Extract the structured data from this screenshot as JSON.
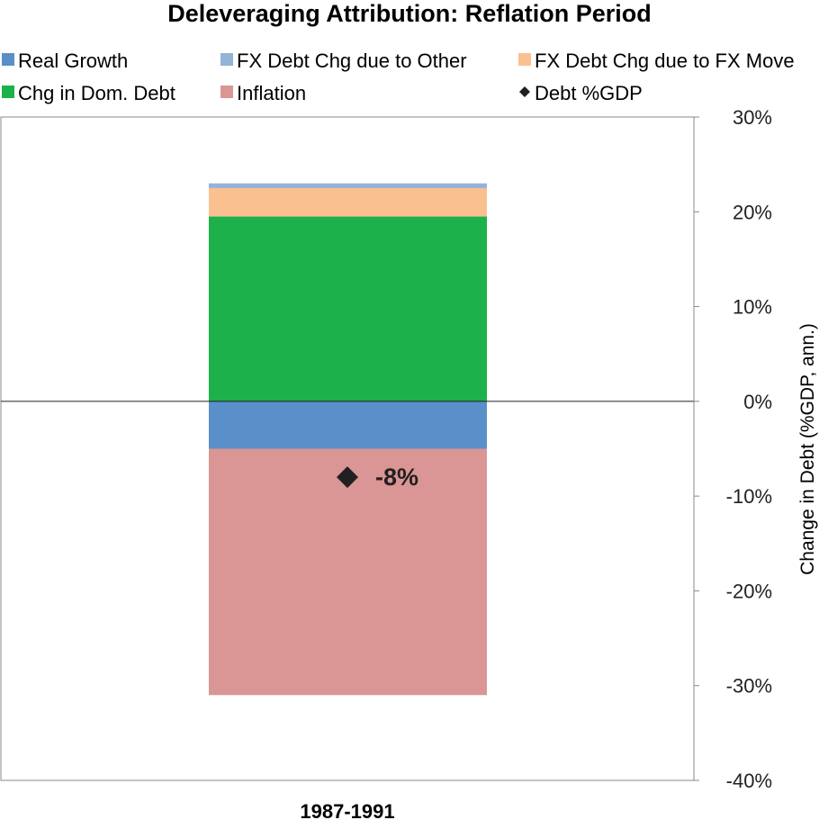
{
  "chart_data": {
    "type": "bar",
    "title": "Deleveraging Attribution: Reflation Period",
    "categories": [
      "1987-1991"
    ],
    "ylabel": "Change in Debt (%GDP, ann.)",
    "ylim": [
      -40,
      30
    ],
    "yticks": [
      "30%",
      "20%",
      "10%",
      "0%",
      "-10%",
      "-20%",
      "-30%",
      "-40%"
    ],
    "ytick_values": [
      30,
      20,
      10,
      0,
      -10,
      -20,
      -30,
      -40
    ],
    "legend_position": "top",
    "grid": false,
    "series": [
      {
        "name": "Real Growth",
        "values": [
          -5
        ],
        "color": "#5b8fc9"
      },
      {
        "name": "FX Debt Chg due to Other",
        "values": [
          0.5
        ],
        "color": "#95b3d7"
      },
      {
        "name": "FX Debt Chg due to FX Move",
        "values": [
          3
        ],
        "color": "#fac090"
      },
      {
        "name": "Chg in Dom. Debt",
        "values": [
          19.5
        ],
        "color": "#1db14b"
      },
      {
        "name": "Inflation",
        "values": [
          -26
        ],
        "color": "#d99694"
      }
    ],
    "stack_order_positive": [
      "Chg in Dom. Debt",
      "FX Debt Chg due to FX Move",
      "FX Debt Chg due to Other"
    ],
    "stack_order_negative": [
      "Real Growth",
      "Inflation"
    ],
    "marker": {
      "name": "Debt %GDP",
      "values": [
        -8
      ],
      "label": "-8%",
      "color": "#231f20"
    }
  }
}
